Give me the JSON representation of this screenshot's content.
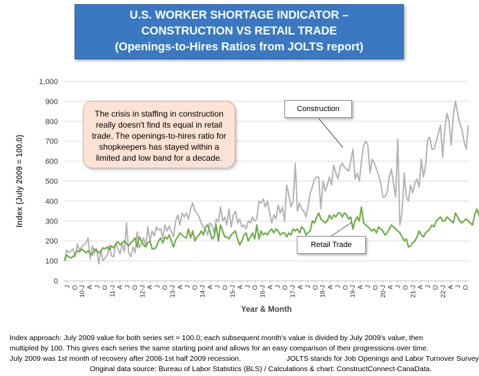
{
  "title": {
    "line1": "U.S. WORKER SHORTAGE INDICATOR –",
    "line2": "CONSTRUCTION VS RETAIL TRADE",
    "line3": "(Openings-to-Hires Ratios from JOLTS report)"
  },
  "callout_text": "The crisis in staffing in construction really doesn't find its equal in retail trade. The openings-to-hires ratio for shopkeepers has stayed within a limited and low band for a decade.",
  "notes": {
    "line1": "Index approach: July 2009 value for both series set = 100.0; each subsequent month's value is divided by July 2009's value, then",
    "line2": "multipled by 100. This gives each series the same starting point and allows for an easy comparison of their progressions over time.",
    "line3a": "July 2009 was 1st month of recovery after 2008-1st half 2009 recession.",
    "line3b": "JOLTS stands for Job Openings and Labor Turnover Survey.",
    "line4": "Original data source: Bureau of Labor Statistics (BLS) / Calculations & chart: ConstructConnect-CanaData."
  },
  "colors": {
    "title_bg": "#3a78c2",
    "construction": "#b3b3b3",
    "retail": "#70ad47",
    "callout_bg": "#fbe2d4",
    "plot_bg": "#ffffff",
    "gridline": "#d9d9d9"
  },
  "chart_data": {
    "type": "line",
    "title": "U.S. WORKER SHORTAGE INDICATOR – CONSTRUCTION VS RETAIL TRADE (Openings-to-Hires Ratios from JOLTS report)",
    "xlabel": "Year & Month",
    "ylabel": "Index (July 2009 = 100.0)",
    "ylim": [
      0,
      1000
    ],
    "yticks": [
      "0",
      "100",
      "200",
      "300",
      "400",
      "500",
      "600",
      "700",
      "800",
      "900",
      "1,000"
    ],
    "x_start": "2009-07",
    "x_end": "2022-10",
    "x_tick_labels": [
      "J",
      "O",
      "10-J",
      "A",
      "J",
      "O",
      "11-J",
      "A",
      "J",
      "O",
      "12-J",
      "A",
      "J",
      "O",
      "13-J",
      "A",
      "J",
      "O",
      "14-J",
      "A",
      "J",
      "O",
      "15-J",
      "A",
      "J",
      "O",
      "16-J",
      "A",
      "J",
      "O",
      "17-J",
      "A",
      "J",
      "O",
      "18-J",
      "A",
      "J",
      "O",
      "19-J",
      "A",
      "J",
      "O",
      "20-J",
      "A",
      "J",
      "O",
      "21-J",
      "A",
      "J",
      "O",
      "22-J",
      "A",
      "J",
      "O"
    ],
    "grid": true,
    "legend": "callout labels on lines",
    "series": [
      {
        "name": "Construction",
        "values": [
          100,
          155,
          140,
          150,
          160,
          120,
          185,
          150,
          170,
          180,
          190,
          215,
          110,
          175,
          140,
          160,
          85,
          155,
          100,
          115,
          130,
          180,
          125,
          120,
          190,
          160,
          135,
          185,
          145,
          290,
          140,
          120,
          170,
          140,
          245,
          165,
          190,
          215,
          175,
          270,
          200,
          250,
          225,
          270,
          255,
          260,
          215,
          280,
          250,
          275,
          245,
          220,
          300,
          330,
          280,
          340,
          320,
          340,
          310,
          360,
          390,
          350,
          340,
          320,
          290,
          270,
          255,
          230,
          290,
          280,
          240,
          310,
          295,
          370,
          300,
          320,
          280,
          360,
          270,
          330,
          350,
          290,
          310,
          270,
          280,
          260,
          300,
          290,
          320,
          300,
          310,
          400,
          390,
          410,
          370,
          400,
          340,
          290,
          330,
          310,
          380,
          340,
          370,
          300,
          480,
          430,
          370,
          400,
          590,
          350,
          390,
          360,
          350,
          320,
          370,
          440,
          470,
          510,
          520,
          520,
          360,
          500,
          450,
          480,
          520,
          480,
          580,
          540,
          510,
          570,
          590,
          570,
          560,
          550,
          600,
          660,
          510,
          540,
          500,
          600,
          680,
          700,
          680,
          540,
          610,
          590,
          560,
          530,
          490,
          420,
          420,
          440,
          520,
          560,
          490,
          420,
          710,
          280,
          340,
          540,
          420,
          400,
          480,
          440,
          490,
          510,
          470,
          610,
          520,
          580,
          710,
          720,
          660,
          660,
          700,
          740,
          780,
          620,
          760,
          840,
          800,
          680,
          830,
          900,
          840,
          790,
          760,
          700,
          660,
          780
        ]
      },
      {
        "name": "Retail Trade",
        "values": [
          100,
          130,
          120,
          115,
          120,
          135,
          150,
          145,
          160,
          150,
          140,
          150,
          135,
          130,
          160,
          150,
          140,
          150,
          165,
          160,
          170,
          155,
          175,
          165,
          185,
          195,
          180,
          190,
          200,
          185,
          175,
          190,
          200,
          215,
          170,
          220,
          200,
          180,
          170,
          190,
          200,
          160,
          160,
          170,
          200,
          215,
          190,
          220,
          210,
          230,
          200,
          170,
          205,
          220,
          240,
          230,
          220,
          215,
          260,
          215,
          250,
          200,
          220,
          230,
          250,
          230,
          270,
          280,
          250,
          210,
          220,
          280,
          200,
          280,
          250,
          220,
          220,
          210,
          230,
          240,
          250,
          210,
          180,
          200,
          230,
          240,
          200,
          220,
          240,
          210,
          280,
          210,
          250,
          230,
          240,
          230,
          250,
          260,
          240,
          260,
          250,
          230,
          240,
          240,
          220,
          240,
          230,
          260,
          250,
          260,
          240,
          270,
          260,
          230,
          240,
          250,
          300,
          290,
          320,
          340,
          310,
          300,
          290,
          300,
          330,
          310,
          330,
          320,
          340,
          340,
          320,
          340,
          330,
          310,
          320,
          260,
          300,
          320,
          300,
          370,
          290,
          280,
          270,
          260,
          250,
          260,
          240,
          270,
          260,
          250,
          230,
          240,
          260,
          280,
          270,
          260,
          250,
          240,
          220,
          200,
          210,
          170,
          175,
          190,
          200,
          220,
          250,
          230,
          220,
          240,
          250,
          260,
          280,
          270,
          300,
          310,
          320,
          300,
          300,
          320,
          310,
          300,
          290,
          340,
          320,
          300,
          290,
          300,
          310,
          300,
          290,
          280,
          330,
          360,
          330,
          390,
          310,
          290,
          310,
          270
        ]
      }
    ]
  }
}
